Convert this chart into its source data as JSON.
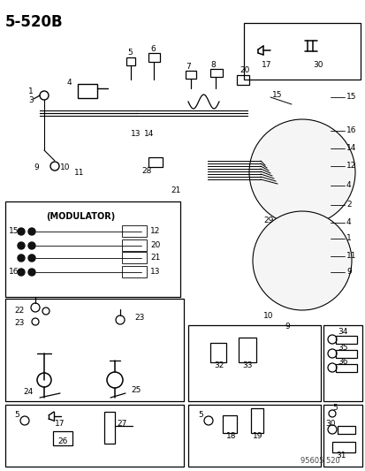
{
  "title": "5-520B",
  "background_color": "#ffffff",
  "line_color": "#000000",
  "text_color": "#000000",
  "watermark": "95605 520"
}
